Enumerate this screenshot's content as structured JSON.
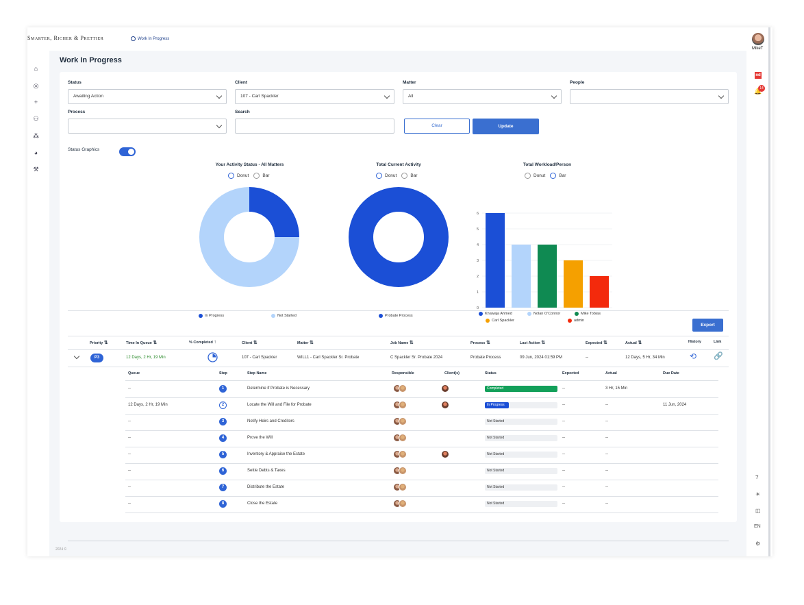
{
  "app": {
    "brand": "Smarter, Richer & Prettier",
    "breadcrumb": "Work In Progress",
    "footer": "2024 ©"
  },
  "user": {
    "name": "MikeT",
    "notification_count": "14",
    "app_badge": "nd",
    "language": "EN"
  },
  "nav_icons": [
    "home-icon",
    "list-icon",
    "plus-icon",
    "people-icon",
    "group-icon",
    "pie-chart-icon",
    "wrench-icon"
  ],
  "rightbar_icons": [
    "help-icon",
    "sun-icon",
    "columns-icon",
    "language-label",
    "settings-icon"
  ],
  "page": {
    "title": "Work In Progress"
  },
  "filters": {
    "status": {
      "label": "Status",
      "value": "Awaiting Action"
    },
    "client": {
      "label": "Client",
      "value": "107 - Carl Spackler"
    },
    "matter": {
      "label": "Matter",
      "value": "All"
    },
    "people": {
      "label": "People",
      "value": ""
    },
    "process": {
      "label": "Process",
      "value": ""
    },
    "search": {
      "label": "Search",
      "value": ""
    },
    "clear_label": "Clear",
    "update_label": "Update",
    "status_graphics_label": "Status Graphics",
    "status_graphics_on": true
  },
  "radio_labels": {
    "donut": "Donut",
    "bar": "Bar"
  },
  "chart_data": [
    {
      "type": "pie",
      "title": "Your Activity Status - All Matters",
      "view": "donut",
      "series": [
        {
          "name": "In Progress",
          "value": 25,
          "color": "#1b4fd6"
        },
        {
          "name": "Not Started",
          "value": 75,
          "color": "#b3d4fb"
        }
      ]
    },
    {
      "type": "pie",
      "title": "Total Current Activity",
      "view": "donut",
      "series": [
        {
          "name": "Probate Process",
          "value": 100,
          "color": "#1b4fd6"
        }
      ]
    },
    {
      "type": "bar",
      "title": "Total Workload/Person",
      "view": "bar",
      "categories": [
        "Khawaja Ahmed",
        "Nolan O'Connor",
        "Mike Tobias",
        "Carl Spackler",
        "admin"
      ],
      "values": [
        6,
        4,
        4,
        3,
        2
      ],
      "colors": [
        "#1b4fd6",
        "#b3d4fb",
        "#0f8a52",
        "#f5a000",
        "#f32a0c"
      ],
      "yticks": [
        "0",
        "1",
        "2",
        "3",
        "4",
        "5",
        "6"
      ],
      "ylim": [
        0,
        6
      ],
      "grid": true,
      "legend": "bottom"
    }
  ],
  "table": {
    "export_label": "Export",
    "headers": {
      "priority": "Priority",
      "time_in_queue": "Time In Queue",
      "pct_completed": "% Completed",
      "client": "Client",
      "matter": "Matter",
      "job_name": "Job Name",
      "process": "Process",
      "last_action": "Last Action",
      "expected": "Expected",
      "actual": "Actual",
      "history": "History",
      "link": "Link"
    },
    "row": {
      "priority": "P3",
      "time_in_queue": "12 Days, 2 Hr, 19 Min",
      "pct_completed": 0.25,
      "client": "107 - Carl Spackler",
      "matter": "WILL1 - Carl Spackler Sr. Probate",
      "job_name": "C Spackler Sr. Probate 2024",
      "process": "Probate Process",
      "last_action": "09 Jun, 2024 01:59 PM",
      "expected": "--",
      "actual": "12 Days, 5 Hr, 34 Min"
    },
    "sub_headers": {
      "queue": "Queue",
      "step": "Step",
      "step_name": "Step Name",
      "responsible": "Responsible",
      "clients": "Client(s)",
      "status": "Status",
      "expected": "Expected",
      "actual": "Actual",
      "due_date": "Due Date"
    },
    "steps": [
      {
        "queue": "--",
        "step": "1",
        "name": "Determine if Probate is Necessary",
        "has_client": true,
        "status": "Completed",
        "progress": 1.0,
        "expected": "--",
        "actual": "3 Hr, 15 Min",
        "due": ""
      },
      {
        "queue": "12 Days, 2 Hr, 19 Min",
        "step": "2",
        "name": "Locate the Will and File for Probate",
        "has_client": true,
        "status": "In Progress",
        "progress": 0.33,
        "expected": "--",
        "actual": "--",
        "due": "11 Jun, 2024"
      },
      {
        "queue": "--",
        "step": "3",
        "name": "Notify Heirs and Creditors",
        "has_client": false,
        "status": "Not Started",
        "progress": 0,
        "expected": "--",
        "actual": "--",
        "due": ""
      },
      {
        "queue": "--",
        "step": "4",
        "name": "Prove the Will",
        "has_client": false,
        "status": "Not Started",
        "progress": 0,
        "expected": "--",
        "actual": "--",
        "due": ""
      },
      {
        "queue": "--",
        "step": "5",
        "name": "Inventory & Appraise the Estate",
        "has_client": true,
        "status": "Not Started",
        "progress": 0,
        "expected": "--",
        "actual": "--",
        "due": ""
      },
      {
        "queue": "--",
        "step": "6",
        "name": "Settle Debts & Taxes",
        "has_client": false,
        "status": "Not Started",
        "progress": 0,
        "expected": "--",
        "actual": "--",
        "due": ""
      },
      {
        "queue": "--",
        "step": "7",
        "name": "Distribute the Estate",
        "has_client": false,
        "status": "Not Started",
        "progress": 0,
        "expected": "--",
        "actual": "--",
        "due": ""
      },
      {
        "queue": "--",
        "step": "8",
        "name": "Close the Estate",
        "has_client": false,
        "status": "Not Started",
        "progress": 0,
        "expected": "--",
        "actual": "--",
        "due": ""
      }
    ]
  },
  "colors": {
    "accent": "#2f64d6",
    "completed": "#13a05a",
    "in_progress": "#1b4fd6",
    "time_green": "#2a8a2a"
  }
}
